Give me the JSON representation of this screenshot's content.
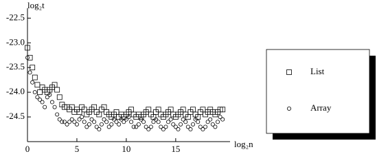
{
  "chart_data": {
    "type": "scatter",
    "x_label": "log₂n",
    "y_label": "log₂t",
    "x": [
      0,
      0.25,
      0.5,
      0.75,
      1,
      1.25,
      1.5,
      1.75,
      2,
      2.25,
      2.5,
      2.75,
      3,
      3.25,
      3.5,
      3.75,
      4,
      4.25,
      4.5,
      4.75,
      5,
      5.25,
      5.5,
      5.75,
      6,
      6.25,
      6.5,
      6.75,
      7,
      7.25,
      7.5,
      7.75,
      8,
      8.25,
      8.5,
      8.75,
      9,
      9.25,
      9.5,
      9.75,
      10,
      10.25,
      10.5,
      10.75,
      11,
      11.25,
      11.5,
      11.75,
      12,
      12.25,
      12.5,
      12.75,
      13,
      13.25,
      13.5,
      13.75,
      14,
      14.25,
      14.5,
      14.75,
      15,
      15.25,
      15.5,
      15.75,
      16,
      16.25,
      16.5,
      16.75,
      17,
      17.25,
      17.5,
      17.75,
      18,
      18.25,
      18.5,
      18.75,
      19,
      19.25,
      19.5,
      19.75
    ],
    "series": [
      {
        "name": "List",
        "color": "#000000",
        "marker": "square",
        "values": [
          -23.1,
          -23.3,
          -23.5,
          -23.7,
          -23.85,
          -24.0,
          -23.9,
          -23.95,
          -24.0,
          -23.95,
          -23.9,
          -23.85,
          -23.95,
          -24.1,
          -24.25,
          -24.3,
          -24.3,
          -24.35,
          -24.3,
          -24.4,
          -24.35,
          -24.4,
          -24.3,
          -24.35,
          -24.45,
          -24.4,
          -24.35,
          -24.3,
          -24.4,
          -24.45,
          -24.35,
          -24.3,
          -24.4,
          -24.45,
          -24.5,
          -24.45,
          -24.4,
          -24.5,
          -24.45,
          -24.5,
          -24.45,
          -24.4,
          -24.35,
          -24.45,
          -24.5,
          -24.45,
          -24.5,
          -24.45,
          -24.4,
          -24.35,
          -24.45,
          -24.5,
          -24.4,
          -24.35,
          -24.45,
          -24.5,
          -24.45,
          -24.4,
          -24.35,
          -24.45,
          -24.5,
          -24.45,
          -24.4,
          -24.35,
          -24.45,
          -24.5,
          -24.4,
          -24.35,
          -24.45,
          -24.5,
          -24.4,
          -24.35,
          -24.45,
          -24.4,
          -24.35,
          -24.4,
          -24.45,
          -24.4,
          -24.35,
          -24.35
        ]
      },
      {
        "name": "Array",
        "color": "#000000",
        "marker": "circle",
        "values": [
          -23.3,
          -23.6,
          -23.8,
          -24.0,
          -24.1,
          -24.15,
          -24.2,
          -24.3,
          -24.1,
          -24.05,
          -24.2,
          -24.3,
          -24.45,
          -24.55,
          -24.6,
          -24.6,
          -24.65,
          -24.6,
          -24.55,
          -24.6,
          -24.65,
          -24.55,
          -24.5,
          -24.6,
          -24.7,
          -24.65,
          -24.55,
          -24.6,
          -24.7,
          -24.75,
          -24.65,
          -24.55,
          -24.6,
          -24.7,
          -24.65,
          -24.55,
          -24.6,
          -24.65,
          -24.55,
          -24.6,
          -24.55,
          -24.5,
          -24.6,
          -24.7,
          -24.7,
          -24.65,
          -24.55,
          -24.6,
          -24.7,
          -24.75,
          -24.7,
          -24.6,
          -24.55,
          -24.6,
          -24.7,
          -24.75,
          -24.7,
          -24.6,
          -24.55,
          -24.65,
          -24.7,
          -24.75,
          -24.65,
          -24.55,
          -24.6,
          -24.7,
          -24.75,
          -24.65,
          -24.55,
          -24.6,
          -24.7,
          -24.75,
          -24.7,
          -24.6,
          -24.55,
          -24.65,
          -24.7,
          -24.6,
          -24.5,
          -24.55
        ]
      }
    ],
    "xlim": [
      0,
      20.5
    ],
    "ylim": [
      -25,
      -22.3
    ],
    "xticks": [
      0,
      5,
      10,
      15
    ],
    "yticks": [
      -22.5,
      {
        "value": -23,
        "label": "-23.0"
      },
      -23.5,
      {
        "value": -24,
        "label": "-24.0"
      },
      -24.5
    ],
    "legend": "right"
  }
}
